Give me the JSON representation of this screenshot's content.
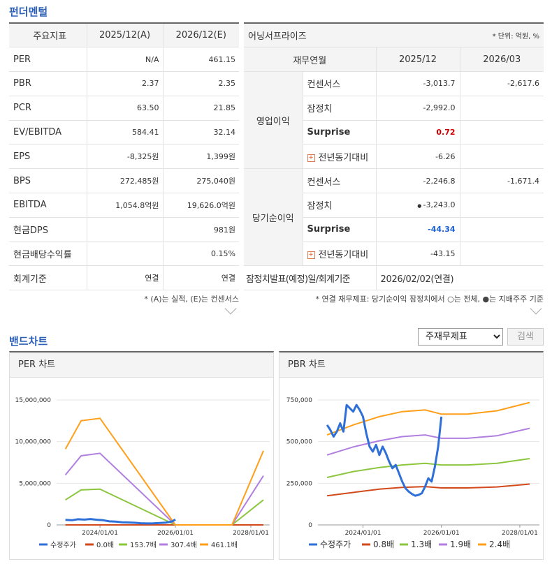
{
  "fundamental": {
    "title": "펀더멘털",
    "headers": [
      "주요지표",
      "2025/12(A)",
      "2026/12(E)"
    ],
    "rows": [
      {
        "label": "PER",
        "a": "N/A",
        "e": "461.15"
      },
      {
        "label": "PBR",
        "a": "2.37",
        "e": "2.35"
      },
      {
        "label": "PCR",
        "a": "63.50",
        "e": "21.85"
      },
      {
        "label": "EV/EBITDA",
        "a": "584.41",
        "e": "32.14"
      },
      {
        "label": "EPS",
        "a": "-8,325원",
        "e": "1,399원"
      },
      {
        "label": "BPS",
        "a": "272,485원",
        "e": "275,040원"
      },
      {
        "label": "EBITDA",
        "a": "1,054.8억원",
        "e": "19,626.0억원"
      },
      {
        "label": "현금DPS",
        "a": "",
        "e": "981원"
      },
      {
        "label": "현금배당수익률",
        "a": "",
        "e": "0.15%"
      },
      {
        "label": "회계기준",
        "a": "연결",
        "e": "연결"
      }
    ],
    "note": "* (A)는 실적, (E)는 컨센서스"
  },
  "earnings": {
    "title": "어닝서프라이즈",
    "unit": "* 단위: 억원, %",
    "headers": [
      "재무연월",
      "2025/12",
      "2026/03"
    ],
    "groups": [
      {
        "name": "영업이익",
        "rows": [
          {
            "label": "컨센서스",
            "v1": "-3,013.7",
            "v2": "-2,617.6"
          },
          {
            "label": "잠정치",
            "v1": "-2,992.0",
            "v2": ""
          },
          {
            "label": "Surprise",
            "v1": "0.72",
            "v2": ""
          },
          {
            "label": "전년동기대비",
            "v1": "-6.26",
            "v2": ""
          }
        ]
      },
      {
        "name": "당기순이익",
        "rows": [
          {
            "label": "컨센서스",
            "v1": "-2,246.8",
            "v2": "-1,671.4"
          },
          {
            "label": "잠정치",
            "v1": "-3,243.0",
            "v2": ""
          },
          {
            "label": "Surprise",
            "v1": "-44.34",
            "v2": ""
          },
          {
            "label": "전년동기대비",
            "v1": "-43.15",
            "v2": ""
          }
        ]
      }
    ],
    "footer_label": "잠정치발표(예정)일/회계기준",
    "footer_value": "2026/02/02(연결)",
    "note": "* 연결 재무제표: 당기순이익 잠정치에서 ○는 전체, ●는 지배주주 기준",
    "surprise_positive_color": "#cc0000",
    "surprise_negative_color": "#1a5fd6"
  },
  "band": {
    "title": "밴드차트",
    "select_value": "주재무제표",
    "search_label": "검색",
    "per_title": "PER 차트",
    "pbr_title": "PBR 차트"
  },
  "chart_data": [
    {
      "type": "line",
      "title": "PER 차트",
      "yticks": [
        "0",
        "5,000,000",
        "10,000,000",
        "15,000,000"
      ],
      "xticks": [
        "2024/01/01",
        "2026/01/01",
        "2028/01/01"
      ],
      "ylim": [
        0,
        15000000
      ],
      "x": [
        "2023/02",
        "2023/07",
        "2024/01",
        "2026/01",
        "2026/07",
        "2027/07",
        "2028/05"
      ],
      "series": [
        {
          "name": "0.0배",
          "color": "#d24a1c",
          "values": [
            0,
            0,
            0,
            0,
            0,
            0,
            0
          ]
        },
        {
          "name": "153.7배",
          "color": "#8cc63f",
          "values": [
            3000000,
            4200000,
            4300000,
            0,
            0,
            0,
            3000000
          ]
        },
        {
          "name": "307.4배",
          "color": "#b07fe0",
          "values": [
            6000000,
            8300000,
            8600000,
            0,
            0,
            0,
            5900000
          ]
        },
        {
          "name": "461.1배",
          "color": "#ff9f1a",
          "values": [
            9100000,
            12500000,
            12800000,
            0,
            0,
            0,
            8900000
          ]
        }
      ],
      "price": {
        "name": "수정주가",
        "color": "#2f6fd8",
        "x": [
          "2023/02",
          "2023/04",
          "2023/06",
          "2023/08",
          "2023/10",
          "2023/12",
          "2024/02",
          "2024/04",
          "2024/06",
          "2024/08",
          "2024/10",
          "2024/12",
          "2025/02",
          "2025/04",
          "2025/06",
          "2025/08",
          "2025/10",
          "2025/12",
          "2026/01"
        ],
        "values": [
          600000,
          560000,
          680000,
          640000,
          700000,
          620000,
          560000,
          430000,
          400000,
          320000,
          290000,
          260000,
          200000,
          180000,
          190000,
          230000,
          280000,
          420000,
          650000
        ]
      }
    },
    {
      "type": "line",
      "title": "PBR 차트",
      "yticks": [
        "0",
        "250,000",
        "500,000",
        "750,000"
      ],
      "xticks": [
        "2024/01/01",
        "2026/01/01",
        "2028/01/01"
      ],
      "ylim": [
        0,
        750000
      ],
      "x": [
        "2023/02",
        "2023/10",
        "2024/06",
        "2025/01",
        "2025/08",
        "2026/01",
        "2026/09",
        "2027/06",
        "2028/04"
      ],
      "series": [
        {
          "name": "0.8배",
          "color": "#d24a1c",
          "values": [
            175000,
            195000,
            215000,
            225000,
            230000,
            222000,
            222000,
            228000,
            245000
          ]
        },
        {
          "name": "1.3배",
          "color": "#8cc63f",
          "values": [
            285000,
            320000,
            345000,
            360000,
            370000,
            360000,
            360000,
            370000,
            398000
          ]
        },
        {
          "name": "1.9배",
          "color": "#b07fe0",
          "values": [
            420000,
            468000,
            505000,
            530000,
            540000,
            520000,
            520000,
            535000,
            580000
          ]
        },
        {
          "name": "2.4배",
          "color": "#ff9f1a",
          "values": [
            540000,
            600000,
            650000,
            680000,
            690000,
            665000,
            665000,
            685000,
            735000
          ]
        }
      ],
      "price": {
        "name": "수정주가",
        "color": "#2f6fd8",
        "x": [
          "2023/02",
          "2023/03",
          "2023/04",
          "2023/05",
          "2023/06",
          "2023/07",
          "2023/08",
          "2023/09",
          "2023/10",
          "2023/11",
          "2023/12",
          "2024/01",
          "2024/02",
          "2024/03",
          "2024/04",
          "2024/05",
          "2024/06",
          "2024/07",
          "2024/08",
          "2024/09",
          "2024/10",
          "2024/11",
          "2024/12",
          "2025/01",
          "2025/02",
          "2025/03",
          "2025/04",
          "2025/05",
          "2025/06",
          "2025/07",
          "2025/08",
          "2025/09",
          "2025/10",
          "2025/11",
          "2025/12",
          "2026/01"
        ],
        "values": [
          600000,
          570000,
          530000,
          560000,
          610000,
          560000,
          720000,
          700000,
          680000,
          720000,
          690000,
          650000,
          550000,
          470000,
          440000,
          480000,
          420000,
          470000,
          430000,
          380000,
          340000,
          360000,
          310000,
          260000,
          220000,
          200000,
          185000,
          175000,
          180000,
          190000,
          230000,
          280000,
          260000,
          350000,
          470000,
          650000
        ]
      }
    }
  ]
}
